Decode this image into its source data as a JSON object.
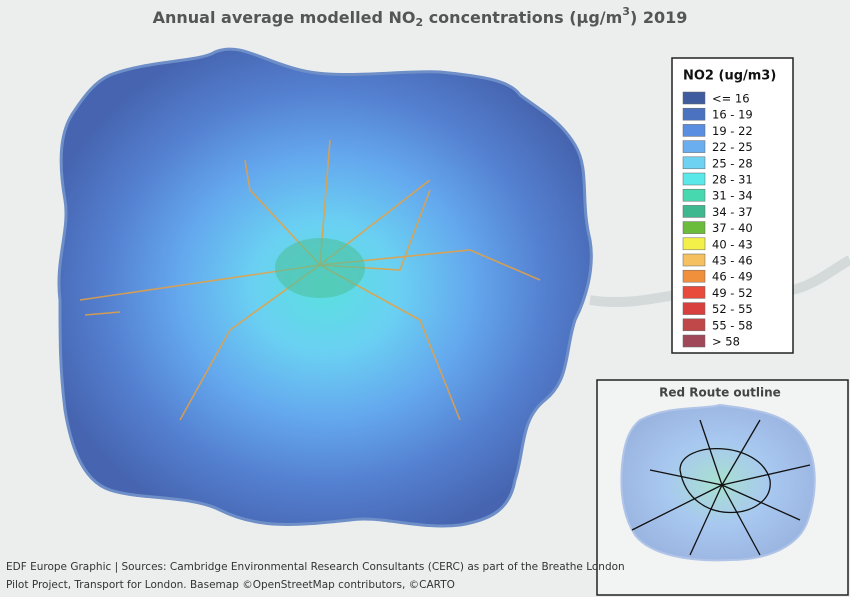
{
  "title": {
    "parts": [
      "Annual average modelled NO",
      "2",
      " concentrations (µg/m",
      "3",
      ") 2019"
    ]
  },
  "legend": {
    "title": "NO2 (ug/m3)",
    "items": [
      {
        "label": "<= 16",
        "color": "#3f5c9e"
      },
      {
        "label": "16 - 19",
        "color": "#4a72c0"
      },
      {
        "label": "19 - 22",
        "color": "#5a8ee0"
      },
      {
        "label": "22 - 25",
        "color": "#6aaef0"
      },
      {
        "label": "25 - 28",
        "color": "#6ed2f2"
      },
      {
        "label": "28 - 31",
        "color": "#5ae8e8"
      },
      {
        "label": "31 - 34",
        "color": "#48d8b0"
      },
      {
        "label": "34 - 37",
        "color": "#3fb890"
      },
      {
        "label": "37 - 40",
        "color": "#6cbc3c"
      },
      {
        "label": "40 - 43",
        "color": "#f4f04a"
      },
      {
        "label": "43 - 46",
        "color": "#f4c060"
      },
      {
        "label": "46 - 49",
        "color": "#f0903c"
      },
      {
        "label": "49 - 52",
        "color": "#e84a3c"
      },
      {
        "label": "52 - 55",
        "color": "#d84040"
      },
      {
        "label": "55 - 58",
        "color": "#c04848"
      },
      {
        "label": "> 58",
        "color": "#a04858"
      }
    ]
  },
  "inset": {
    "title": "Red Route outline"
  },
  "source": [
    "EDF Europe Graphic | Sources: Cambridge Environmental Research Consultants (CERC) as part of the Breathe London",
    "Pilot Project, Transport for London. Basemap ©OpenStreetMap contributors, ©CARTO"
  ]
}
